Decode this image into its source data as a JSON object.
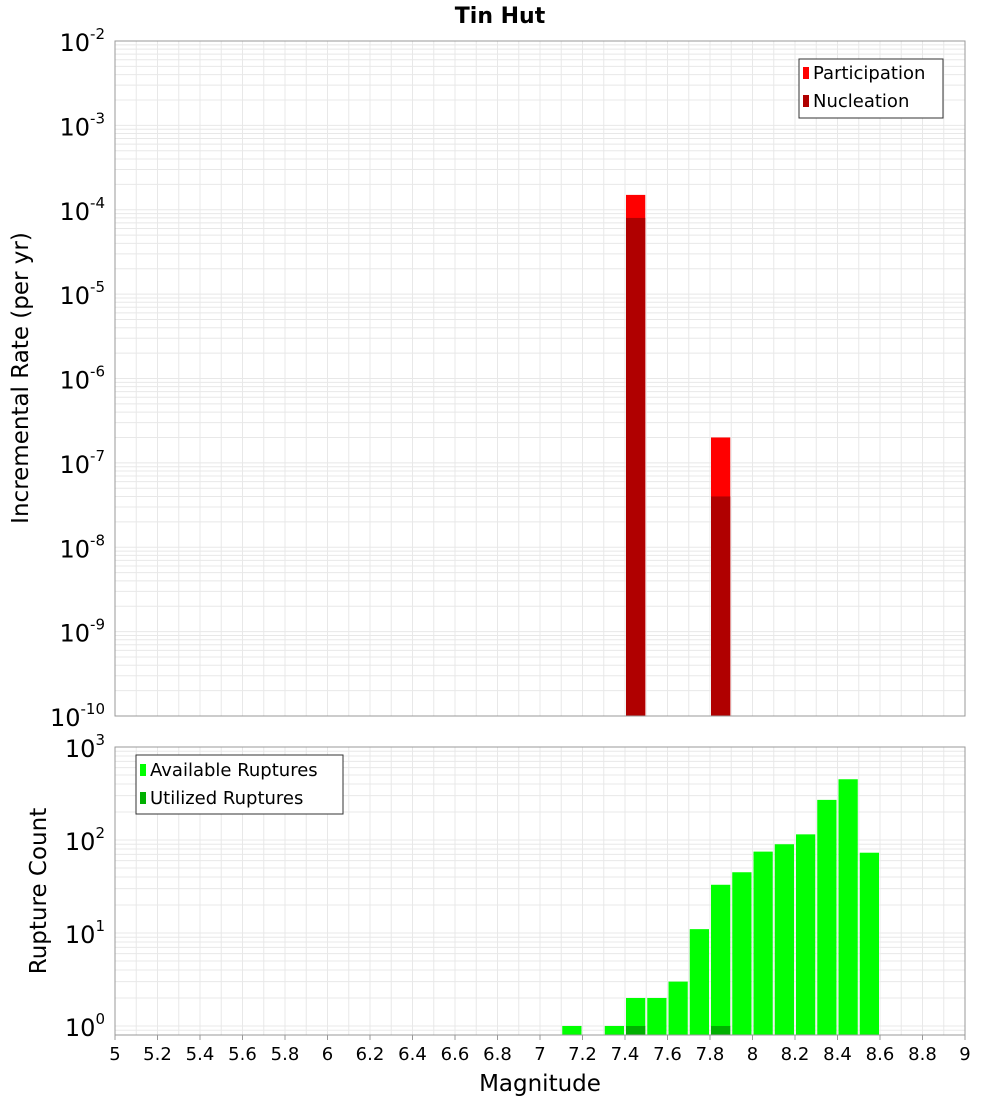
{
  "title": "Tin Hut",
  "colors": {
    "participation": "#ff0000",
    "nucleation": "#b00000",
    "available": "#00ff00",
    "utilized": "#00b000",
    "grid": "#e8e8e8",
    "frame": "#999999"
  },
  "chart_data": [
    {
      "type": "bar",
      "ylabel": "Incremental Rate (per yr)",
      "yscale": "log",
      "ylim": [
        1e-10,
        0.01
      ],
      "xlim": [
        5,
        9
      ],
      "grid": true,
      "legend": "top-right",
      "bin_width": 0.1,
      "y_ticks": [
        {
          "base": "10",
          "exp": "-2"
        },
        {
          "base": "10",
          "exp": "-3"
        },
        {
          "base": "10",
          "exp": "-4"
        },
        {
          "base": "10",
          "exp": "-5"
        },
        {
          "base": "10",
          "exp": "-6"
        },
        {
          "base": "10",
          "exp": "-7"
        },
        {
          "base": "10",
          "exp": "-8"
        },
        {
          "base": "10",
          "exp": "-9"
        },
        {
          "base": "10",
          "exp": "-10"
        }
      ],
      "series": [
        {
          "name": "Participation",
          "color": "#ff0000",
          "x": [
            7.45,
            7.85
          ],
          "values": [
            0.00015,
            2e-07
          ]
        },
        {
          "name": "Nucleation",
          "color": "#b00000",
          "x": [
            7.45,
            7.85
          ],
          "values": [
            8e-05,
            4e-08
          ]
        }
      ]
    },
    {
      "type": "bar",
      "ylabel": "Rupture Count",
      "xlabel": "Magnitude",
      "yscale": "log",
      "ylim": [
        0.8,
        1000
      ],
      "xlim": [
        5,
        9
      ],
      "grid": true,
      "legend": "top-left",
      "bin_width": 0.1,
      "y_ticks": [
        {
          "base": "10",
          "exp": "3"
        },
        {
          "base": "10",
          "exp": "2"
        },
        {
          "base": "10",
          "exp": "1"
        },
        {
          "base": "10",
          "exp": "0"
        }
      ],
      "x_ticks": [
        "5",
        "5.2",
        "5.4",
        "5.6",
        "5.8",
        "6",
        "6.2",
        "6.4",
        "6.6",
        "6.8",
        "7",
        "7.2",
        "7.4",
        "7.6",
        "7.8",
        "8",
        "8.2",
        "8.4",
        "8.6",
        "8.8",
        "9"
      ],
      "series": [
        {
          "name": "Available Ruptures",
          "color": "#00ff00",
          "x": [
            7.15,
            7.35,
            7.45,
            7.55,
            7.65,
            7.75,
            7.85,
            7.95,
            8.05,
            8.15,
            8.25,
            8.35,
            8.45,
            8.55
          ],
          "values": [
            1,
            1,
            2,
            2,
            3,
            11,
            33,
            45,
            75,
            90,
            115,
            270,
            450,
            73
          ]
        },
        {
          "name": "Utilized Ruptures",
          "color": "#00b000",
          "x": [
            7.45,
            7.85
          ],
          "values": [
            1,
            1
          ]
        }
      ]
    }
  ]
}
